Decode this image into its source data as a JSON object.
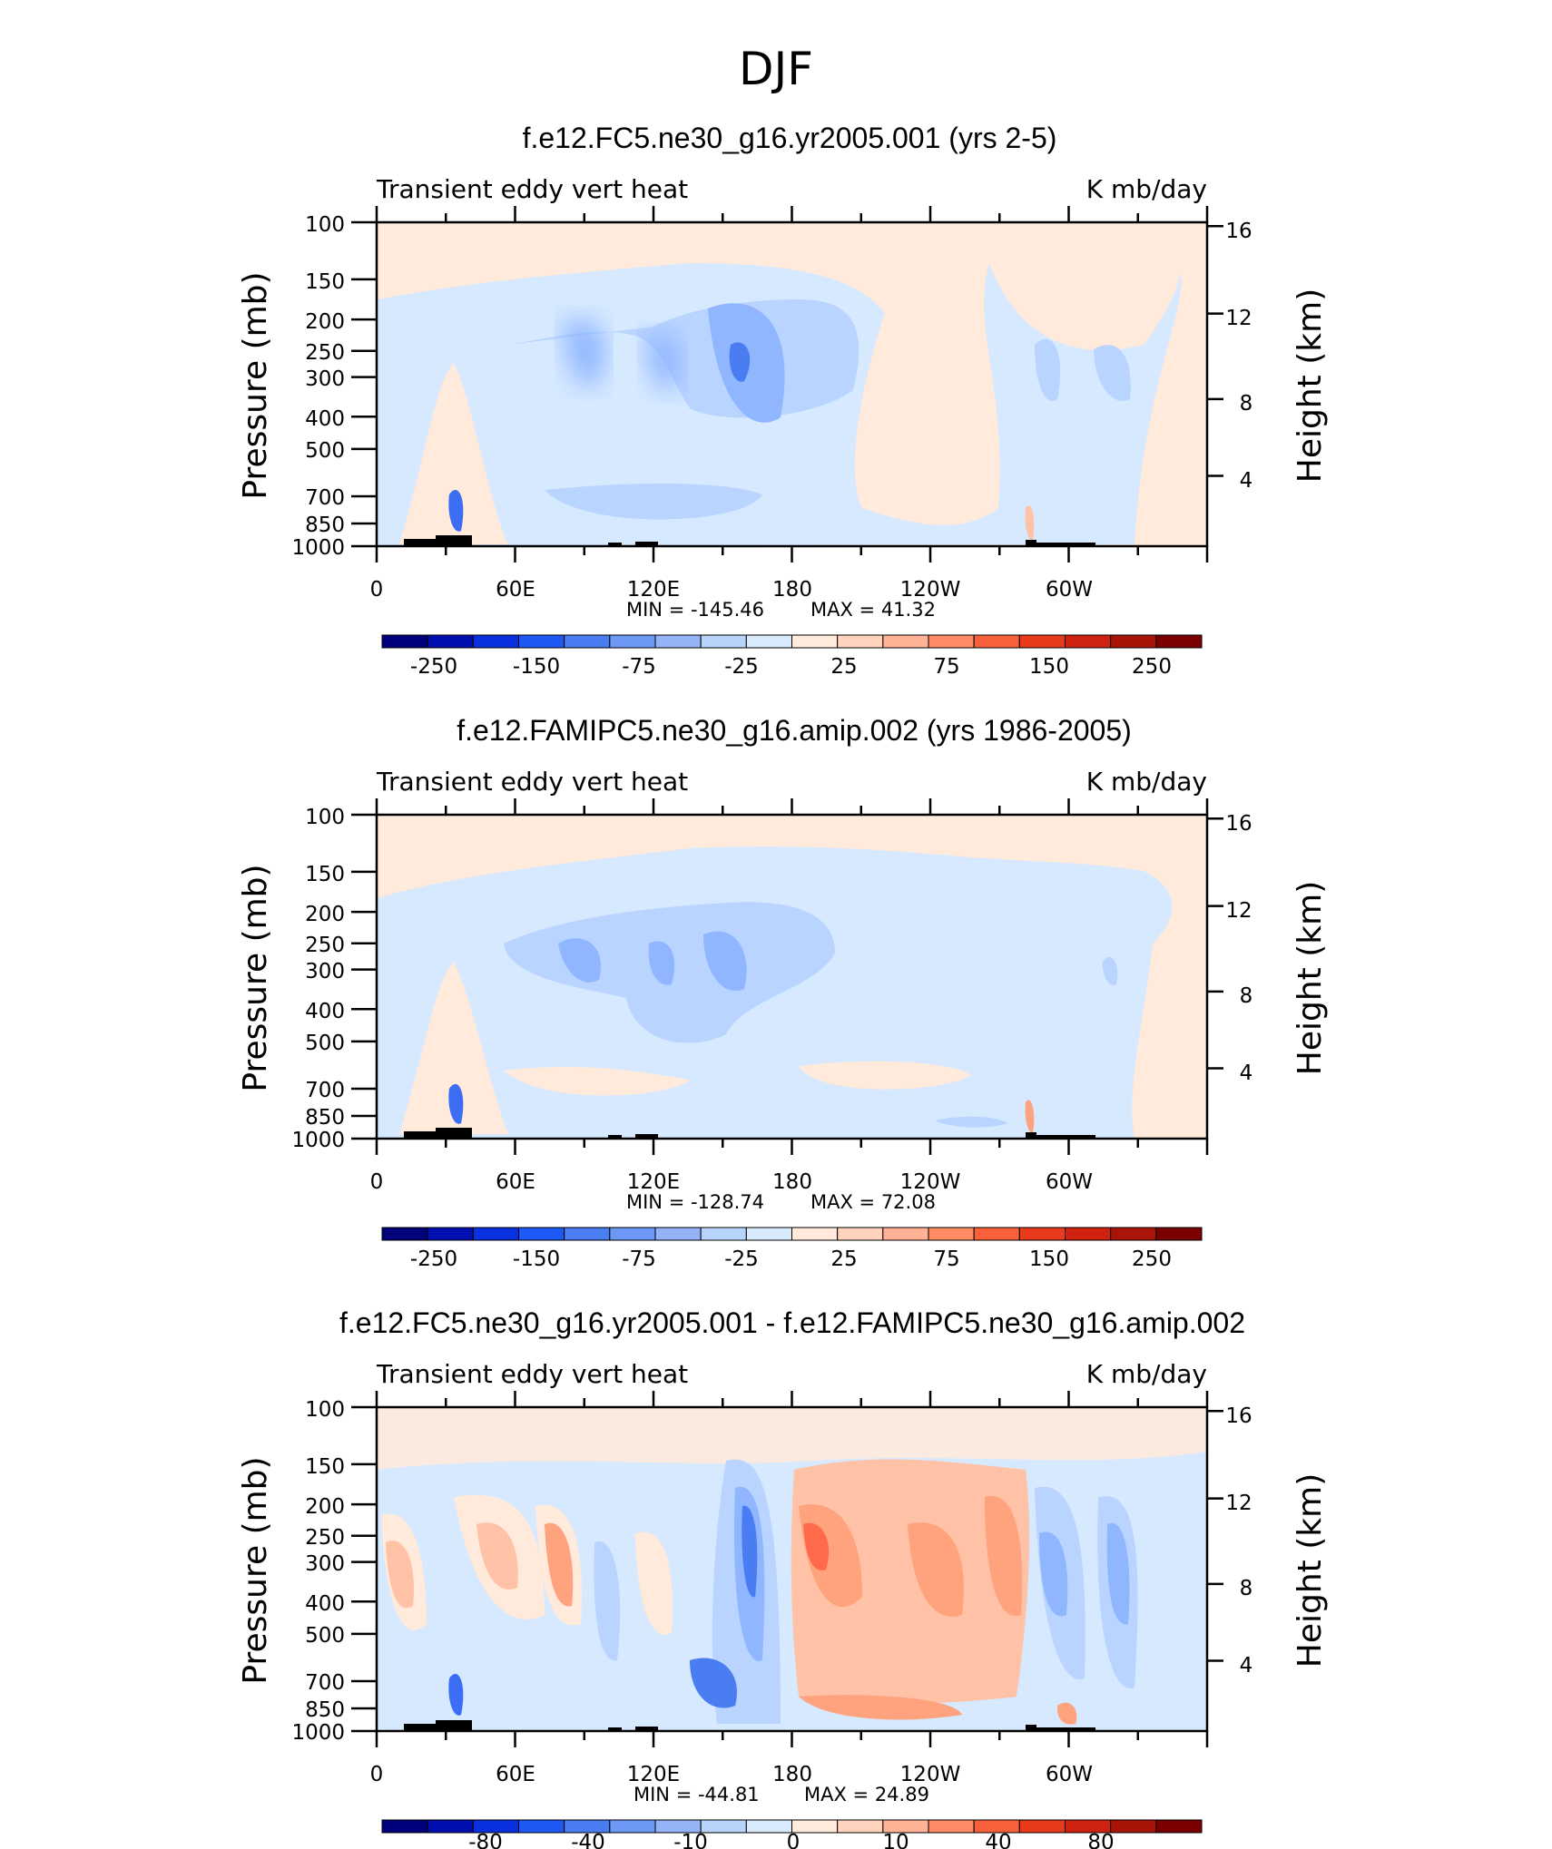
{
  "page_title": "DJF",
  "chart_data": [
    {
      "type": "heatmap",
      "title": "f.e12.FC5.ne30_g16.yr2005.001 (yrs 2-5)",
      "left_label": "Transient eddy vert heat",
      "right_label": "K mb/day",
      "ylabel": "Pressure (mb)",
      "ylabel_right": "Height (km)",
      "x_ticks": [
        "0",
        "60E",
        "120E",
        "180",
        "120W",
        "60W"
      ],
      "y_ticks": [
        "100",
        "150",
        "200",
        "250",
        "300",
        "400",
        "500",
        "700",
        "850",
        "1000"
      ],
      "y_right_ticks": [
        "16",
        "12",
        "8",
        "4"
      ],
      "min_text": "MIN = -145.46",
      "max_text": "MAX = 41.32",
      "colorbar_labels": [
        "-250",
        "-150",
        "-75",
        "-25",
        "25",
        "75",
        "150",
        "250"
      ],
      "field": [
        {
          "x": 0.06,
          "p": 500,
          "v": 10
        },
        {
          "x": 0.06,
          "p": 250,
          "v": -10
        },
        {
          "x": 0.11,
          "p": 650,
          "v": -10
        },
        {
          "x": 0.17,
          "p": 300,
          "v": 10
        },
        {
          "x": 0.27,
          "p": 300,
          "v": -50
        },
        {
          "x": 0.33,
          "p": 300,
          "v": -50
        },
        {
          "x": 0.44,
          "p": 280,
          "v": -80
        },
        {
          "x": 0.44,
          "p": 650,
          "v": -30
        },
        {
          "x": 0.28,
          "p": 650,
          "v": -30
        },
        {
          "x": 0.6,
          "p": 400,
          "v": 10
        },
        {
          "x": 0.7,
          "p": 250,
          "v": 10
        },
        {
          "x": 0.9,
          "p": 300,
          "v": -30
        },
        {
          "x": 0.97,
          "p": 500,
          "v": 10
        },
        {
          "x": 0.1,
          "p": 820,
          "v": -70
        }
      ]
    },
    {
      "type": "heatmap",
      "title": "f.e12.FAMIPC5.ne30_g16.amip.002 (yrs 1986-2005)",
      "left_label": "Transient eddy vert heat",
      "right_label": "K mb/day",
      "ylabel": "Pressure (mb)",
      "ylabel_right": "Height (km)",
      "x_ticks": [
        "0",
        "60E",
        "120E",
        "180",
        "120W",
        "60W"
      ],
      "y_ticks": [
        "100",
        "150",
        "200",
        "250",
        "300",
        "400",
        "500",
        "700",
        "850",
        "1000"
      ],
      "y_right_ticks": [
        "16",
        "12",
        "8",
        "4"
      ],
      "min_text": "MIN = -128.74",
      "max_text": "MAX = 72.08",
      "colorbar_labels": [
        "-250",
        "-150",
        "-75",
        "-25",
        "25",
        "75",
        "150",
        "250"
      ],
      "field": [
        {
          "x": 0.06,
          "p": 500,
          "v": 10
        },
        {
          "x": 0.25,
          "p": 300,
          "v": -50
        },
        {
          "x": 0.34,
          "p": 300,
          "v": -50
        },
        {
          "x": 0.43,
          "p": 280,
          "v": -60
        },
        {
          "x": 0.55,
          "p": 700,
          "v": 10
        },
        {
          "x": 0.88,
          "p": 300,
          "v": -30
        },
        {
          "x": 0.97,
          "p": 500,
          "v": 10
        },
        {
          "x": 0.1,
          "p": 820,
          "v": -70
        }
      ]
    },
    {
      "type": "heatmap",
      "title": "f.e12.FC5.ne30_g16.yr2005.001 - f.e12.FAMIPC5.ne30_g16.amip.002",
      "left_label": "Transient eddy vert heat",
      "right_label": "K mb/day",
      "ylabel": "Pressure (mb)",
      "ylabel_right": "Height (km)",
      "x_ticks": [
        "0",
        "60E",
        "120E",
        "180",
        "120W",
        "60W"
      ],
      "y_ticks": [
        "100",
        "150",
        "200",
        "250",
        "300",
        "400",
        "500",
        "700",
        "850",
        "1000"
      ],
      "y_right_ticks": [
        "16",
        "12",
        "8",
        "4"
      ],
      "min_text": "MIN = -44.81",
      "max_text": "MAX = 24.89",
      "colorbar_labels": [
        "-80",
        "-40",
        "-10",
        "0",
        "10",
        "40",
        "80"
      ],
      "field": [
        {
          "x": 0.04,
          "p": 330,
          "v": 15
        },
        {
          "x": 0.16,
          "p": 300,
          "v": 15
        },
        {
          "x": 0.22,
          "p": 300,
          "v": 20
        },
        {
          "x": 0.29,
          "p": 700,
          "v": -15
        },
        {
          "x": 0.35,
          "p": 350,
          "v": -10
        },
        {
          "x": 0.44,
          "p": 300,
          "v": -40
        },
        {
          "x": 0.43,
          "p": 700,
          "v": -30
        },
        {
          "x": 0.53,
          "p": 280,
          "v": 25
        },
        {
          "x": 0.63,
          "p": 350,
          "v": 15
        },
        {
          "x": 0.75,
          "p": 280,
          "v": 15
        },
        {
          "x": 0.82,
          "p": 350,
          "v": -20
        },
        {
          "x": 0.89,
          "p": 350,
          "v": -25
        },
        {
          "x": 0.55,
          "p": 900,
          "v": 15
        }
      ]
    }
  ]
}
